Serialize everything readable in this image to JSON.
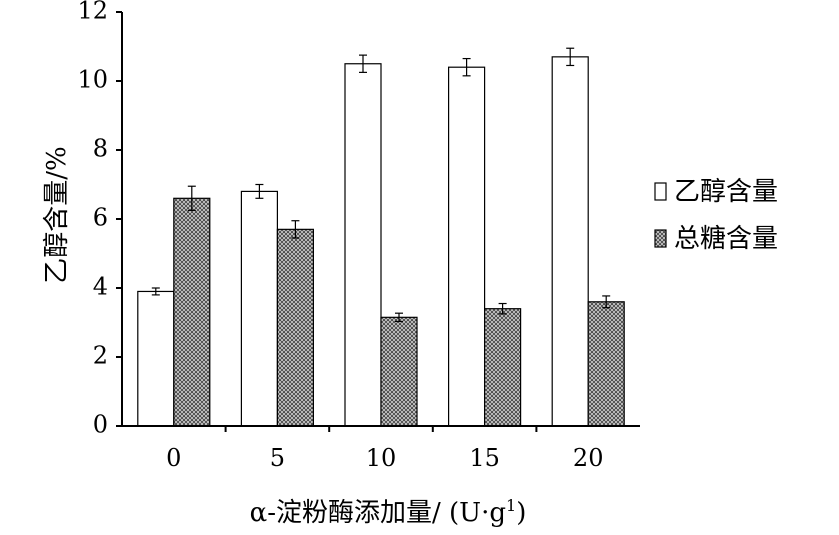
{
  "chart_data": {
    "type": "bar",
    "categories": [
      "0",
      "5",
      "10",
      "15",
      "20"
    ],
    "series": [
      {
        "name": "乙醇含量",
        "values": [
          3.9,
          6.8,
          10.5,
          10.4,
          10.7
        ],
        "errors": [
          0.1,
          0.2,
          0.25,
          0.25,
          0.25
        ]
      },
      {
        "name": "总糖含量",
        "values": [
          6.6,
          5.7,
          3.15,
          3.4,
          3.6
        ],
        "errors": [
          0.35,
          0.25,
          0.12,
          0.15,
          0.17
        ]
      }
    ],
    "xlabel": "α-淀粉酶添加量/ (U·g",
    "xlabel_sup": "1",
    "xlabel_close": ")",
    "ylabel": "乙醇含量/%",
    "ylim": [
      0,
      12
    ],
    "yticks": [
      "0",
      "2",
      "4",
      "6",
      "8",
      "10",
      "12"
    ],
    "grid": false,
    "legend_position": "right",
    "colors": {
      "series_0_fill": "#ffffff",
      "series_1_fill": "#c8c8c8",
      "hatch": "#333333",
      "axis": "#000000",
      "error_bar": "#000000"
    }
  }
}
